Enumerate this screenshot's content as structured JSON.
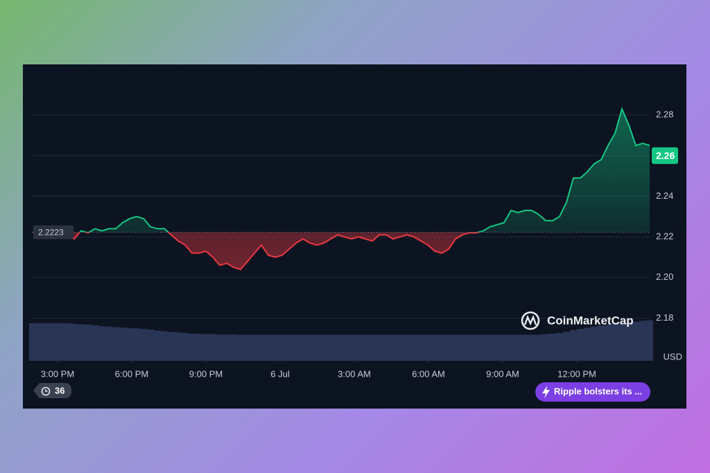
{
  "chart_data": {
    "type": "line",
    "xlim": [
      0,
      89
    ],
    "xticks": [
      {
        "value": 3.6,
        "label": "3:00 PM"
      },
      {
        "value": 14.3,
        "label": "6:00 PM"
      },
      {
        "value": 25,
        "label": "9:00 PM"
      },
      {
        "value": 35.7,
        "label": "6 Jul"
      },
      {
        "value": 46.4,
        "label": "3:00 AM"
      },
      {
        "value": 57.1,
        "label": "6:00 AM"
      },
      {
        "value": 67.8,
        "label": "9:00 AM"
      },
      {
        "value": 78.5,
        "label": "12:00 PM"
      }
    ],
    "ylim": [
      2.159,
      2.3015
    ],
    "yticks": [
      2.18,
      {
        "value": 2.2,
        "label": "2.20"
      },
      2.22,
      2.24,
      2.26,
      2.28
    ],
    "y_unit": "USD",
    "grid": true,
    "baseline": 2.2223,
    "current_price": 2.26,
    "series": [
      {
        "color": "#16c784",
        "color_below": "#ea3943",
        "values": [
          2.222,
          2.224,
          2.225,
          2.224,
          2.222,
          2.221,
          2.219,
          2.223,
          2.222,
          2.224,
          2.223,
          2.224,
          2.224,
          2.227,
          2.229,
          2.23,
          2.229,
          2.225,
          2.224,
          2.224,
          2.221,
          2.218,
          2.216,
          2.212,
          2.212,
          2.213,
          2.21,
          2.206,
          2.207,
          2.205,
          2.204,
          2.208,
          2.212,
          2.216,
          2.211,
          2.21,
          2.211,
          2.214,
          2.217,
          2.219,
          2.217,
          2.216,
          2.217,
          2.219,
          2.221,
          2.22,
          2.219,
          2.22,
          2.219,
          2.218,
          2.221,
          2.221,
          2.219,
          2.22,
          2.221,
          2.22,
          2.218,
          2.216,
          2.213,
          2.212,
          2.214,
          2.219,
          2.221,
          2.222,
          2.222,
          2.223,
          2.225,
          2.226,
          2.227,
          2.233,
          2.232,
          2.233,
          2.233,
          2.231,
          2.228,
          2.228,
          2.23,
          2.237,
          2.249,
          2.249,
          2.252,
          2.256,
          2.258,
          2.265,
          2.271,
          2.283,
          2.275,
          2.265,
          2.266,
          2.265
        ]
      }
    ],
    "volume": {
      "axis": "y2",
      "color": "#2a3556",
      "values": [
        13,
        13,
        13,
        13,
        13,
        13,
        12.8,
        12.6,
        12.5,
        12.3,
        12,
        11.8,
        11.6,
        11.5,
        11.3,
        11.2,
        11,
        10.8,
        10.5,
        10.2,
        10,
        9.8,
        9.6,
        9.4,
        9.3,
        9.2,
        9.2,
        9.1,
        9.1,
        9.1,
        9,
        9,
        9,
        9,
        9,
        9,
        9,
        9,
        9,
        9,
        9,
        9,
        9,
        9,
        9,
        9,
        9,
        9,
        9,
        9,
        9,
        9,
        9,
        9,
        9,
        9,
        9,
        9,
        9,
        9,
        9,
        9,
        9,
        9,
        9,
        9,
        9,
        9,
        9,
        9,
        9,
        9,
        9,
        9,
        9.2,
        9.4,
        9.6,
        10,
        10.6,
        11,
        11.4,
        11.8,
        12.2,
        12.5,
        12.8,
        13,
        13.2,
        13.5,
        13.8,
        14
      ]
    },
    "y2lim": [
      0,
      100
    ],
    "watermark": "CoinMarketCap",
    "badge": "36",
    "news": "Ripple bolsters its ..."
  }
}
